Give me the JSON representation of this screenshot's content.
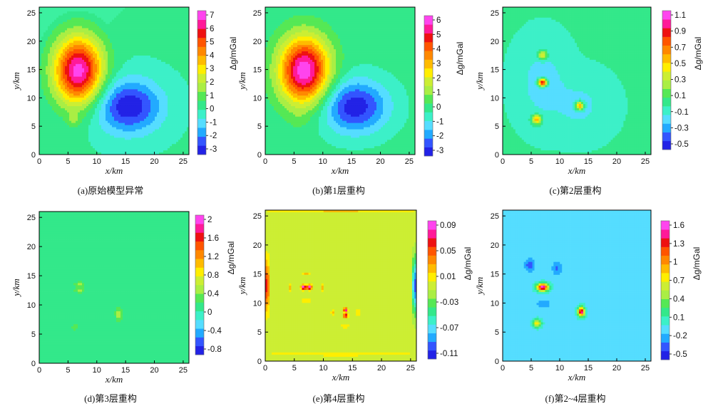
{
  "figure": {
    "colormap": [
      "#2222e6",
      "#3355ff",
      "#22aaff",
      "#55ddff",
      "#3cf0c8",
      "#33e88a",
      "#55e855",
      "#aaee44",
      "#ccee33",
      "#ffee00",
      "#ffbb00",
      "#ff8800",
      "#ff5500",
      "#ee1111",
      "#ff1a99",
      "#ff44ee"
    ],
    "panels": [
      {
        "caption": "(a)原始模型异常",
        "xlabel": "x/km",
        "ylabel": "y/km",
        "cblabel": "Δg/mGal",
        "xlim": [
          0,
          26
        ],
        "ylim": [
          0,
          26
        ],
        "xticks": [
          "0",
          "5",
          "10",
          "15",
          "20",
          "25"
        ],
        "yticks": [
          "0",
          "5",
          "10",
          "15",
          "20",
          "25"
        ],
        "colorbar_ticks": [
          "7",
          "6",
          "5",
          "4",
          "3",
          "2",
          "1",
          "0",
          "-1",
          "-2",
          "-3"
        ],
        "range": [
          -3.5,
          7.5
        ],
        "background": 0,
        "diagonal_tint": true,
        "anomalies": [
          {
            "x": 6.8,
            "y": 14.8,
            "sx": 3.0,
            "sy": 4.2,
            "amp": 7.2
          },
          {
            "x": 15.5,
            "y": 8.5,
            "sx": 4.0,
            "sy": 3.3,
            "amp": -3.4
          },
          {
            "x": 6.0,
            "y": 6.0,
            "sx": 0.8,
            "sy": 0.8,
            "amp": 1.0
          }
        ]
      },
      {
        "caption": "(b)第1层重构",
        "xlabel": "x/km",
        "ylabel": "y/km",
        "cblabel": "Δg/mGal",
        "xlim": [
          0,
          26
        ],
        "ylim": [
          0,
          26
        ],
        "xticks": [
          "0",
          "5",
          "10",
          "15",
          "20",
          "25"
        ],
        "yticks": [
          "0",
          "5",
          "10",
          "15",
          "20",
          "25"
        ],
        "colorbar_ticks": [
          "6",
          "5",
          "4",
          "3",
          "2",
          "1",
          "0",
          "-1",
          "-2",
          "-3"
        ],
        "range": [
          -3.5,
          7.0
        ],
        "background": 0,
        "diagonal_tint": false,
        "anomalies": [
          {
            "x": 6.8,
            "y": 14.8,
            "sx": 3.1,
            "sy": 4.2,
            "amp": 6.9
          },
          {
            "x": 15.5,
            "y": 8.5,
            "sx": 4.1,
            "sy": 3.3,
            "amp": -3.3
          },
          {
            "x": 5.8,
            "y": 6.0,
            "sx": 1.0,
            "sy": 1.0,
            "amp": 0.3
          }
        ]
      },
      {
        "caption": "(c)第2层重构",
        "xlabel": "x/km",
        "ylabel": "y/km",
        "cblabel": "Δg/mGal",
        "xlim": [
          0,
          26
        ],
        "ylim": [
          0,
          26
        ],
        "xticks": [
          "0",
          "5",
          "10",
          "15",
          "20",
          "25"
        ],
        "yticks": [
          "0",
          "5",
          "10",
          "15",
          "20",
          "25"
        ],
        "colorbar_ticks": [
          "1.1",
          "0.9",
          "0.7",
          "0.5",
          "0.3",
          "0.1",
          "-0.1",
          "-0.3",
          "-0.5"
        ],
        "range": [
          -0.55,
          1.2
        ],
        "background": 0.0,
        "diagonal_tint": false,
        "anomalies": [
          {
            "x": 7.0,
            "y": 12.7,
            "sx": 0.55,
            "sy": 0.5,
            "amp": 1.2
          },
          {
            "x": 7.0,
            "y": 17.5,
            "sx": 0.55,
            "sy": 0.55,
            "amp": 0.55
          },
          {
            "x": 6.0,
            "y": 6.2,
            "sx": 0.55,
            "sy": 0.55,
            "amp": 0.7
          },
          {
            "x": 13.5,
            "y": 8.6,
            "sx": 0.5,
            "sy": 0.5,
            "amp": 0.8
          },
          {
            "x": 7.0,
            "y": 12.7,
            "sx": 2.5,
            "sy": 4.0,
            "amp": -0.2
          },
          {
            "x": 13.5,
            "y": 8.6,
            "sx": 3.0,
            "sy": 3.0,
            "amp": -0.15
          }
        ]
      },
      {
        "caption": "(d)第3层重构",
        "xlabel": "x/km",
        "ylabel": "y/km",
        "cblabel": "Δg/mGal",
        "xlim": [
          0,
          26
        ],
        "ylim": [
          0,
          26
        ],
        "xticks": [
          "0",
          "5",
          "10",
          "15",
          "20",
          "25"
        ],
        "yticks": [
          "0",
          "5",
          "10",
          "15",
          "20",
          "25"
        ],
        "colorbar_ticks": [
          "2",
          "1.6",
          "1.2",
          "0.8",
          "0.4",
          "0",
          "-0.4",
          "-0.8"
        ],
        "range": [
          -1.0,
          2.2
        ],
        "background": 0.0,
        "diagonal_tint": false,
        "anomalies": [
          {
            "x": 7.0,
            "y": 13.5,
            "sx": 0.7,
            "sy": 0.35,
            "amp": 0.5
          },
          {
            "x": 7.0,
            "y": 12.5,
            "sx": 0.7,
            "sy": 0.35,
            "amp": 0.45
          },
          {
            "x": 13.8,
            "y": 8.4,
            "sx": 0.45,
            "sy": 0.9,
            "amp": 0.55
          },
          {
            "x": 6.2,
            "y": 6.2,
            "sx": 0.5,
            "sy": 0.5,
            "amp": 0.35
          }
        ]
      },
      {
        "caption": "(e)第4层重构",
        "xlabel": "x/km",
        "ylabel": "y/km",
        "cblabel": "Δg/mGal",
        "xlim": [
          0,
          26
        ],
        "ylim": [
          0,
          26
        ],
        "xticks": [
          "0",
          "5",
          "10",
          "15",
          "20",
          "25"
        ],
        "yticks": [
          "0",
          "5",
          "10",
          "15",
          "20",
          "25"
        ],
        "colorbar_ticks": [
          "0.09",
          "0.05",
          "0.01",
          "-0.03",
          "-0.07",
          "-0.11"
        ],
        "range": [
          -0.12,
          0.11
        ],
        "background": 0.0,
        "diagonal_tint": false,
        "anomalies": [
          {
            "x": 6.6,
            "y": 12.7,
            "sx": 0.3,
            "sy": 0.3,
            "amp": 0.11
          },
          {
            "x": 7.6,
            "y": 12.7,
            "sx": 0.3,
            "sy": 0.3,
            "amp": 0.11
          },
          {
            "x": 13.8,
            "y": 8.8,
            "sx": 0.25,
            "sy": 0.25,
            "amp": 0.1
          },
          {
            "x": 13.8,
            "y": 7.8,
            "sx": 0.25,
            "sy": 0.25,
            "amp": 0.1
          },
          {
            "x": 7.1,
            "y": 15.0,
            "sx": 0.5,
            "sy": 0.2,
            "amp": 0.03
          },
          {
            "x": 7.1,
            "y": 10.4,
            "sx": 0.5,
            "sy": 0.2,
            "amp": 0.03
          },
          {
            "x": 4.3,
            "y": 12.7,
            "sx": 0.2,
            "sy": 0.45,
            "amp": 0.03
          },
          {
            "x": 9.9,
            "y": 12.7,
            "sx": 0.2,
            "sy": 0.45,
            "amp": 0.03
          },
          {
            "x": 11.6,
            "y": 8.3,
            "sx": 0.2,
            "sy": 0.4,
            "amp": 0.03
          },
          {
            "x": 16.0,
            "y": 8.3,
            "sx": 0.2,
            "sy": 0.4,
            "amp": 0.03
          },
          {
            "x": 13.8,
            "y": 6.0,
            "sx": 0.45,
            "sy": 0.2,
            "amp": 0.03
          },
          {
            "x": 0.3,
            "y": 13.0,
            "sx": 0.25,
            "sy": 3.0,
            "amp": 0.08
          },
          {
            "x": 25.7,
            "y": 13.0,
            "sx": 0.25,
            "sy": 3.0,
            "amp": -0.11
          },
          {
            "x": 13.0,
            "y": 1.2,
            "sx": 9.0,
            "sy": 0.2,
            "amp": 0.025
          },
          {
            "x": 13.0,
            "y": 25.8,
            "sx": 9.0,
            "sy": 0.2,
            "amp": 0.025
          }
        ]
      },
      {
        "caption": "(f)第2~4层重构",
        "xlabel": "x/km",
        "ylabel": "y/km",
        "cblabel": "Δg/mGal",
        "xlim": [
          0,
          26
        ],
        "ylim": [
          0,
          26
        ],
        "xticks": [
          "0",
          "5",
          "10",
          "15",
          "20",
          "25"
        ],
        "yticks": [
          "0",
          "5",
          "10",
          "15",
          "20",
          "25"
        ],
        "colorbar_ticks": [
          "1.6",
          "1.3",
          "1",
          "0.7",
          "0.4",
          "0.1",
          "-0.2",
          "-0.5"
        ],
        "range": [
          -0.55,
          1.8
        ],
        "background": 0.0,
        "diagonal_tint": false,
        "anomalies": [
          {
            "x": 7.0,
            "y": 12.7,
            "sx": 0.7,
            "sy": 0.45,
            "amp": 1.8
          },
          {
            "x": 13.8,
            "y": 8.5,
            "sx": 0.4,
            "sy": 0.55,
            "amp": 1.7
          },
          {
            "x": 6.0,
            "y": 6.5,
            "sx": 0.5,
            "sy": 0.45,
            "amp": 0.9
          },
          {
            "x": 4.7,
            "y": 16.5,
            "sx": 0.6,
            "sy": 0.8,
            "amp": -0.35
          },
          {
            "x": 9.5,
            "y": 16.0,
            "sx": 0.6,
            "sy": 0.8,
            "amp": -0.3
          },
          {
            "x": 7.2,
            "y": 9.8,
            "sx": 1.0,
            "sy": 0.6,
            "amp": -0.2
          }
        ]
      }
    ]
  }
}
